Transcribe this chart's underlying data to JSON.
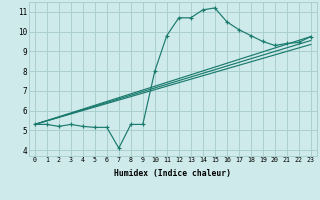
{
  "xlabel": "Humidex (Indice chaleur)",
  "bg_color": "#ceeaea",
  "grid_color": "#aacfcf",
  "line_color": "#1a7a6e",
  "xlim": [
    -0.5,
    23.5
  ],
  "ylim": [
    3.7,
    11.5
  ],
  "xticks": [
    0,
    1,
    2,
    3,
    4,
    5,
    6,
    7,
    8,
    9,
    10,
    11,
    12,
    13,
    14,
    15,
    16,
    17,
    18,
    19,
    20,
    21,
    22,
    23
  ],
  "yticks": [
    4,
    5,
    6,
    7,
    8,
    9,
    10,
    11
  ],
  "curve1_x": [
    0,
    1,
    2,
    3,
    4,
    5,
    6,
    7,
    8,
    9,
    10,
    11,
    12,
    13,
    14,
    15,
    16,
    17,
    18,
    19,
    20,
    21,
    22,
    23
  ],
  "curve1_y": [
    5.3,
    5.3,
    5.2,
    5.3,
    5.2,
    5.15,
    5.15,
    4.1,
    5.3,
    5.3,
    8.0,
    9.8,
    10.7,
    10.7,
    11.1,
    11.2,
    10.5,
    10.1,
    9.8,
    9.5,
    9.3,
    9.4,
    9.45,
    9.75
  ],
  "line1_x": [
    0,
    23
  ],
  "line1_y": [
    5.3,
    9.75
  ],
  "line2_x": [
    0,
    23
  ],
  "line2_y": [
    5.3,
    9.55
  ],
  "line3_x": [
    0,
    23
  ],
  "line3_y": [
    5.3,
    9.35
  ]
}
